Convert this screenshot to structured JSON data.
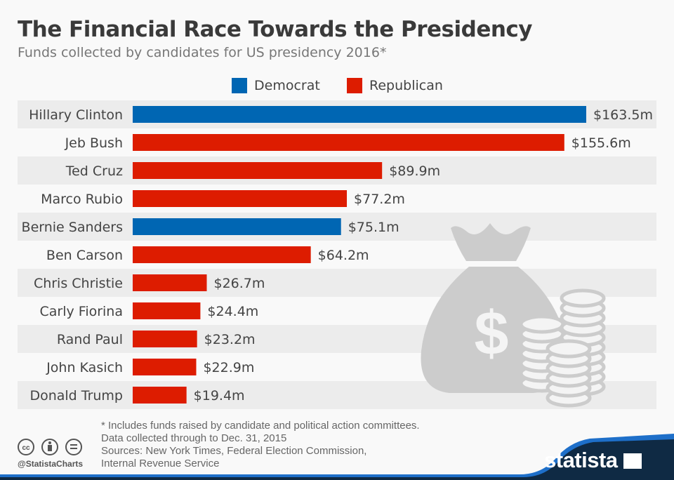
{
  "title": "The Financial Race Towards the Presidency",
  "subtitle": "Funds collected by candidates for US presidency 2016*",
  "colors": {
    "Democrat": "#0066b3",
    "Republican": "#dd1c00",
    "stripe": "#ececec",
    "illustration": "#cccccc",
    "footer_band": "#0f2a44"
  },
  "chart_data": {
    "type": "bar",
    "orientation": "horizontal",
    "categories": [
      "Hillary Clinton",
      "Jeb Bush",
      "Ted Cruz",
      "Marco Rubio",
      "Bernie Sanders",
      "Ben Carson",
      "Chris Christie",
      "Carly Fiorina",
      "Rand Paul",
      "John Kasich",
      "Donald Trump"
    ],
    "values": [
      163.5,
      155.6,
      89.9,
      77.2,
      75.1,
      64.2,
      26.7,
      24.4,
      23.2,
      22.9,
      19.4
    ],
    "party": [
      "Democrat",
      "Republican",
      "Republican",
      "Republican",
      "Democrat",
      "Republican",
      "Republican",
      "Republican",
      "Republican",
      "Republican",
      "Republican"
    ],
    "labels": [
      "$163.5m",
      "$155.6m",
      "$89.9m",
      "$77.2m",
      "$75.1m",
      "$64.2m",
      "$26.7m",
      "$24.4m",
      "$23.2m",
      "$22.9m",
      "$19.4m"
    ],
    "legend": [
      "Democrat",
      "Republican"
    ],
    "legend_position": "top",
    "grid": false,
    "xlim": [
      0,
      163.5
    ]
  },
  "footer": {
    "notes": [
      "* Includes funds raised by candidate and political action committees.",
      "Data collected through to Dec. 31, 2015",
      "Sources: New York Times, Federal Election Commission,",
      "Internal Revenue Service"
    ],
    "handle": "@StatistaCharts",
    "brand": "statista",
    "license_icons": [
      "cc-icon",
      "attribution-icon",
      "no-derivatives-icon"
    ]
  }
}
